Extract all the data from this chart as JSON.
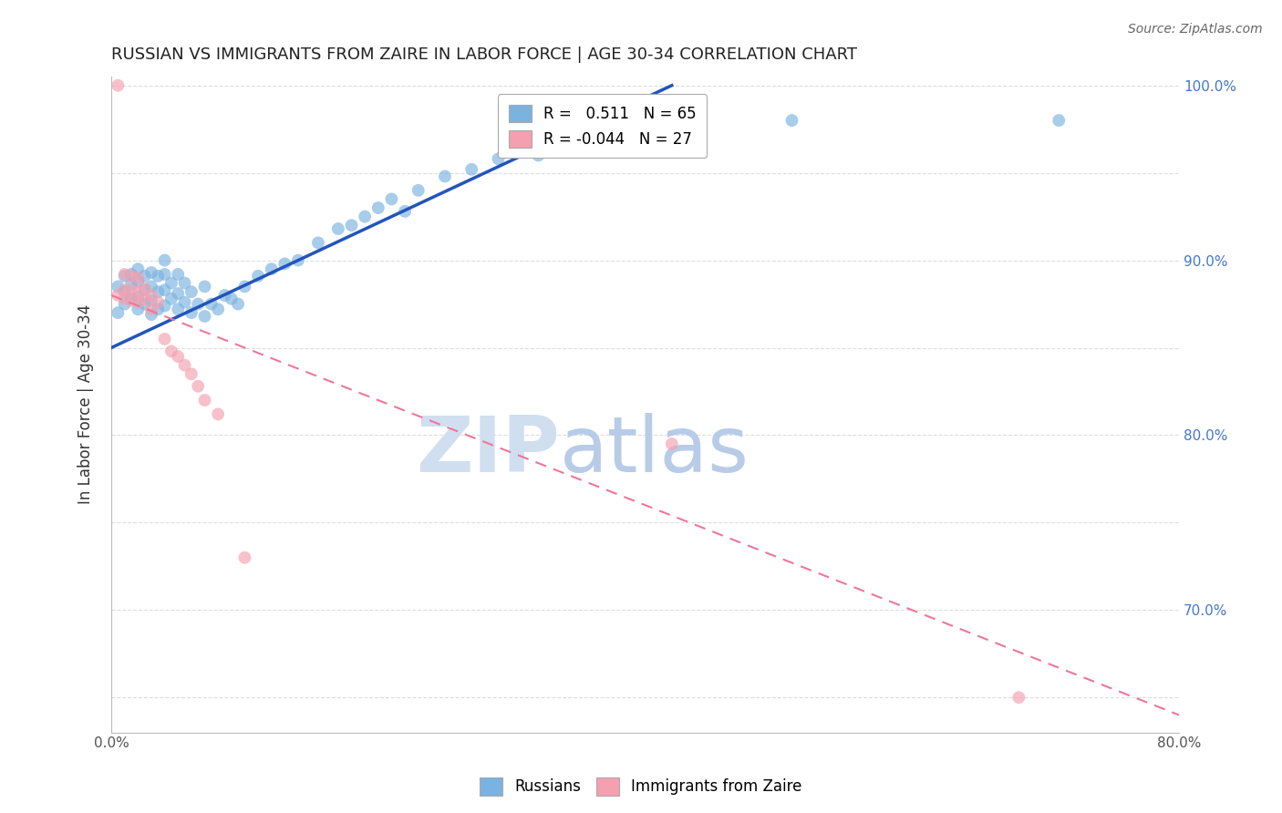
{
  "title": "RUSSIAN VS IMMIGRANTS FROM ZAIRE IN LABOR FORCE | AGE 30-34 CORRELATION CHART",
  "source": "Source: ZipAtlas.com",
  "xlabel": "",
  "ylabel": "In Labor Force | Age 30-34",
  "xmin": 0.0,
  "xmax": 0.8,
  "ymin": 0.63,
  "ymax": 1.005,
  "xticks": [
    0.0,
    0.1,
    0.2,
    0.3,
    0.4,
    0.5,
    0.6,
    0.7,
    0.8
  ],
  "xtick_labels": [
    "0.0%",
    "",
    "",
    "",
    "",
    "",
    "",
    "",
    "80.0%"
  ],
  "yticks": [
    0.65,
    0.7,
    0.75,
    0.8,
    0.85,
    0.9,
    0.95,
    1.0
  ],
  "ytick_labels_right": [
    "",
    "70.0%",
    "",
    "80.0%",
    "",
    "90.0%",
    "",
    "100.0%"
  ],
  "legend_russian": "R =   0.511   N = 65",
  "legend_zaire": "R = -0.044   N = 27",
  "legend_label_russian": "Russians",
  "legend_label_zaire": "Immigrants from Zaire",
  "russian_color": "#7ab3e0",
  "zaire_color": "#f4a0b0",
  "trend_russian_color": "#2255bb",
  "trend_zaire_color": "#ee7799",
  "background_color": "#ffffff",
  "grid_color": "#dddddd",
  "watermark_zip": "ZIP",
  "watermark_atlas": "atlas",
  "watermark_zip_color": "#d0dff0",
  "watermark_atlas_color": "#b8cce8",
  "axis_label_color": "#4477cc",
  "russians_x": [
    0.005,
    0.005,
    0.01,
    0.01,
    0.01,
    0.015,
    0.015,
    0.015,
    0.02,
    0.02,
    0.02,
    0.02,
    0.025,
    0.025,
    0.025,
    0.03,
    0.03,
    0.03,
    0.03,
    0.035,
    0.035,
    0.035,
    0.04,
    0.04,
    0.04,
    0.04,
    0.045,
    0.045,
    0.05,
    0.05,
    0.05,
    0.055,
    0.055,
    0.06,
    0.06,
    0.065,
    0.07,
    0.07,
    0.075,
    0.08,
    0.085,
    0.09,
    0.095,
    0.1,
    0.11,
    0.12,
    0.13,
    0.14,
    0.155,
    0.17,
    0.18,
    0.19,
    0.2,
    0.21,
    0.22,
    0.23,
    0.25,
    0.27,
    0.29,
    0.32,
    0.36,
    0.4,
    0.44,
    0.51,
    0.71
  ],
  "russians_y": [
    0.87,
    0.885,
    0.875,
    0.882,
    0.891,
    0.878,
    0.886,
    0.892,
    0.872,
    0.879,
    0.888,
    0.895,
    0.875,
    0.883,
    0.891,
    0.869,
    0.877,
    0.885,
    0.893,
    0.872,
    0.882,
    0.891,
    0.874,
    0.883,
    0.892,
    0.9,
    0.878,
    0.887,
    0.872,
    0.881,
    0.892,
    0.876,
    0.887,
    0.87,
    0.882,
    0.875,
    0.868,
    0.885,
    0.875,
    0.872,
    0.88,
    0.878,
    0.875,
    0.885,
    0.891,
    0.895,
    0.898,
    0.9,
    0.91,
    0.918,
    0.92,
    0.925,
    0.93,
    0.935,
    0.928,
    0.94,
    0.948,
    0.952,
    0.958,
    0.96,
    0.965,
    0.97,
    0.975,
    0.98,
    0.98
  ],
  "zaire_x": [
    0.005,
    0.005,
    0.01,
    0.01,
    0.01,
    0.015,
    0.015,
    0.015,
    0.02,
    0.02,
    0.02,
    0.025,
    0.025,
    0.03,
    0.03,
    0.035,
    0.04,
    0.045,
    0.05,
    0.055,
    0.06,
    0.065,
    0.07,
    0.08,
    0.1,
    0.42,
    0.68
  ],
  "zaire_y": [
    1.0,
    0.88,
    0.878,
    0.883,
    0.892,
    0.877,
    0.883,
    0.891,
    0.876,
    0.882,
    0.89,
    0.878,
    0.884,
    0.872,
    0.88,
    0.876,
    0.855,
    0.848,
    0.845,
    0.84,
    0.835,
    0.828,
    0.82,
    0.812,
    0.73,
    0.795,
    0.65
  ],
  "trend_russian_x0": 0.0,
  "trend_russian_y0": 0.85,
  "trend_russian_x1": 0.42,
  "trend_russian_y1": 1.0,
  "trend_zaire_x0": 0.0,
  "trend_zaire_y0": 0.88,
  "trend_zaire_x1": 0.8,
  "trend_zaire_y1": 0.64
}
